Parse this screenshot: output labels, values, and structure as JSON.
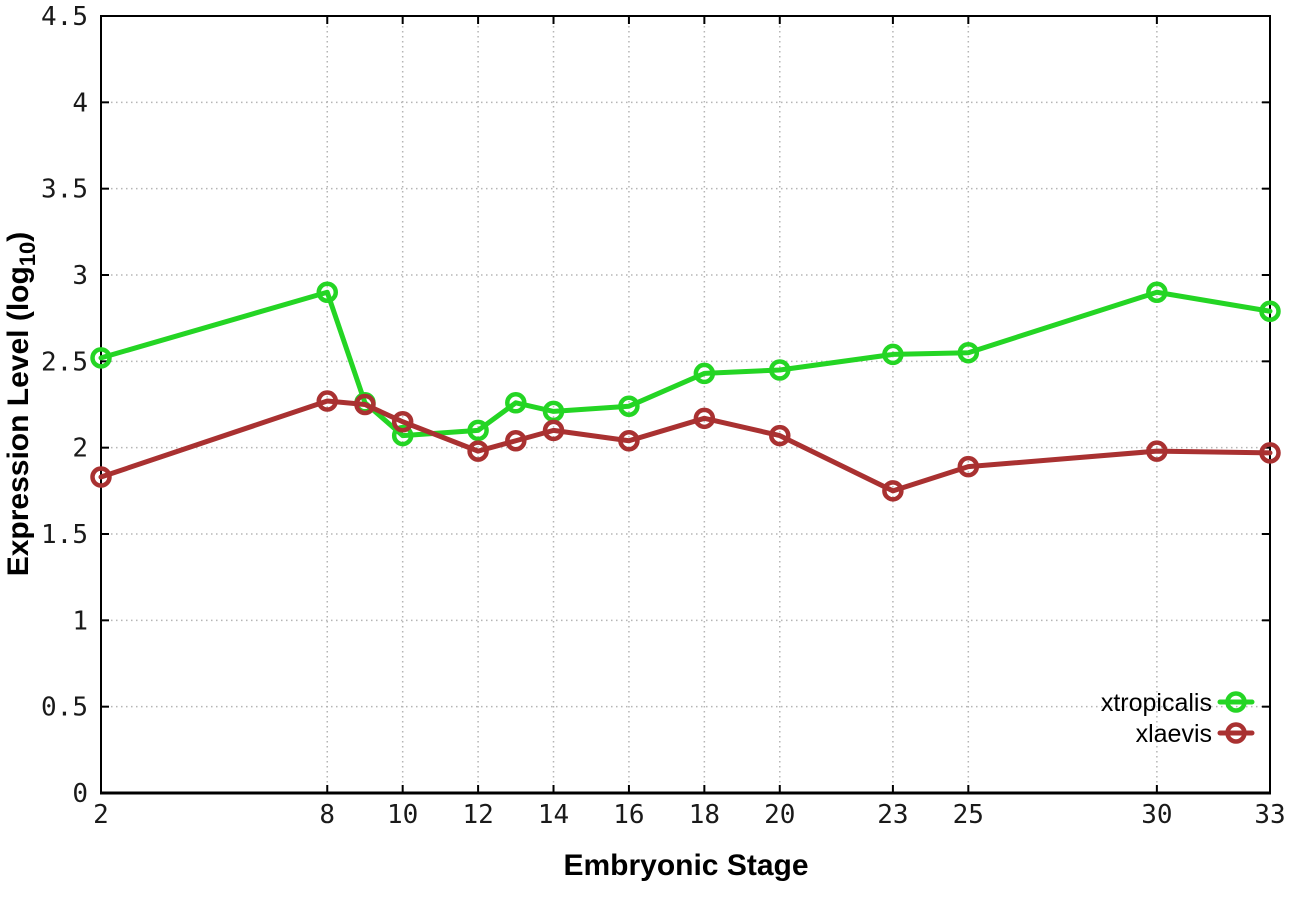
{
  "chart_data": {
    "type": "line",
    "x": [
      2,
      8,
      9,
      10,
      12,
      13,
      14,
      16,
      18,
      20,
      23,
      25,
      30,
      33
    ],
    "series": [
      {
        "name": "xtropicalis",
        "color": "#24d524",
        "values": [
          2.52,
          2.9,
          2.26,
          2.07,
          2.1,
          2.26,
          2.21,
          2.24,
          2.43,
          2.45,
          2.54,
          2.55,
          2.9,
          2.79
        ]
      },
      {
        "name": "xlaevis",
        "color": "#a93131",
        "values": [
          1.83,
          2.27,
          2.25,
          2.15,
          1.98,
          2.04,
          2.1,
          2.04,
          2.17,
          2.07,
          1.75,
          1.89,
          1.98,
          1.97
        ]
      }
    ],
    "xlabel": "Embryonic Stage",
    "ylabel": "Expression Level (log10)",
    "ylabel_parts": {
      "prefix": "Expression Level (log",
      "subscript": "10",
      "suffix": ")"
    },
    "xticks": [
      2,
      8,
      10,
      12,
      14,
      16,
      18,
      20,
      23,
      25,
      30,
      33
    ],
    "yticks": [
      0,
      0.5,
      1,
      1.5,
      2,
      2.5,
      3,
      3.5,
      4,
      4.5
    ],
    "xlim": [
      2,
      33
    ],
    "ylim": [
      0,
      4.5
    ],
    "grid": true,
    "legend_position": "bottom-right",
    "marker": "open-circle",
    "background_color": "#ffffff",
    "axis_color": "#000000",
    "grid_color": "#b5b5b5"
  }
}
